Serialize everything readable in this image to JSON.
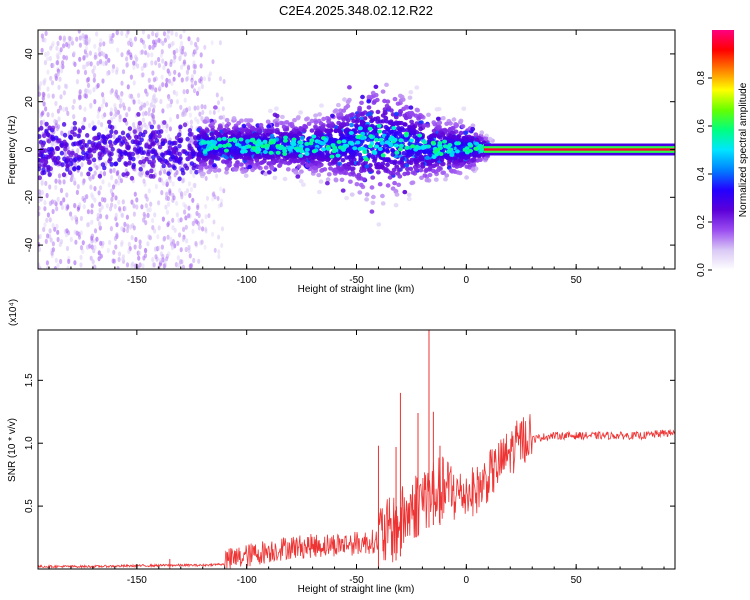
{
  "title": "C2E4.2025.348.02.12.R22",
  "chart_data": [
    {
      "type": "heatmap",
      "xlabel": "Height of straight line (km)",
      "ylabel": "Frequency (Hz)",
      "xlim": [
        -195,
        95
      ],
      "ylim": [
        -50,
        50
      ],
      "xticks": [
        -150,
        -100,
        -50,
        0,
        50
      ],
      "yticks": [
        -40,
        -20,
        0,
        20,
        40
      ],
      "colorbar": {
        "label": "Normalized spectral amplitude",
        "range": [
          0,
          1
        ],
        "ticks": [
          0.0,
          0.2,
          0.4,
          0.6,
          0.8
        ],
        "colormap": [
          "#ffffff",
          "#d9c8f5",
          "#9a4cf0",
          "#5b00d8",
          "#2300ff",
          "#0080ff",
          "#00e5ff",
          "#00ff80",
          "#66ff00",
          "#ffff00",
          "#ff8000",
          "#ff0000",
          "#ff0080"
        ]
      },
      "features": [
        {
          "region": "-195 to -120 km",
          "description": "broadband scattered noise across all frequencies, main energy band near 0 Hz"
        },
        {
          "region": "-120 to 10 km",
          "description": "energy concentrated within about ±10 Hz, broadening to about ±15 Hz near -40 km"
        },
        {
          "region": "10 to 95 km",
          "description": "narrow high-amplitude tone at 0 Hz"
        }
      ]
    },
    {
      "type": "line",
      "xlabel": "Height of straight line (km)",
      "ylabel": "SNR (10 * v/v)",
      "y_multiplier": "(x10⁴)",
      "xlim": [
        -195,
        95
      ],
      "ylim": [
        0,
        1.9
      ],
      "xticks": [
        -150,
        -100,
        -50,
        0,
        50
      ],
      "yticks": [
        0.5,
        1.0,
        1.5
      ],
      "series": [
        {
          "color": "#ee3333",
          "x": [
            -195,
            -170,
            -150,
            -135,
            -120,
            -110,
            -100,
            -90,
            -80,
            -70,
            -60,
            -50,
            -40,
            -35,
            -30,
            -25,
            -20,
            -15,
            -10,
            -5,
            0,
            5,
            10,
            15,
            20,
            25,
            30,
            35,
            40,
            50,
            60,
            70,
            80,
            85,
            90,
            95
          ],
          "y": [
            0.02,
            0.02,
            0.025,
            0.03,
            0.03,
            0.04,
            0.08,
            0.12,
            0.15,
            0.16,
            0.17,
            0.18,
            0.2,
            0.22,
            0.3,
            0.4,
            0.5,
            0.55,
            0.55,
            0.55,
            0.55,
            0.58,
            0.68,
            0.78,
            0.88,
            0.97,
            1.03,
            1.05,
            1.06,
            1.06,
            1.06,
            1.06,
            1.06,
            1.07,
            1.08,
            1.08
          ]
        }
      ],
      "spikes": [
        {
          "x": -135,
          "y": 0.08
        },
        {
          "x": -40,
          "y": 0.98
        },
        {
          "x": -32,
          "y": 0.97
        },
        {
          "x": -30,
          "y": 1.4
        },
        {
          "x": -22,
          "y": 1.24
        },
        {
          "x": -17,
          "y": 1.9
        },
        {
          "x": -15,
          "y": 1.25
        },
        {
          "x": -12,
          "y": 0.98
        }
      ]
    }
  ]
}
